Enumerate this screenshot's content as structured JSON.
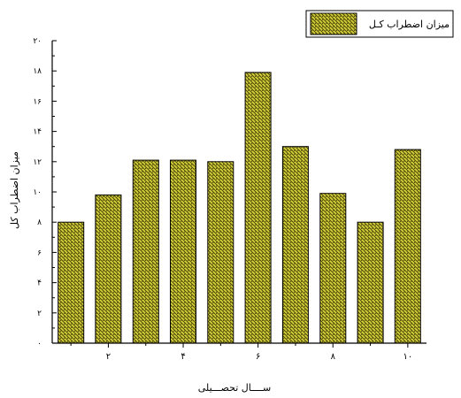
{
  "chart_data": {
    "type": "bar",
    "x": [
      1,
      2,
      3,
      4,
      5,
      6,
      7,
      8,
      9,
      10
    ],
    "xticks": [
      2,
      4,
      6,
      8,
      10
    ],
    "xtick_labels": [
      "۲",
      "۴",
      "۶",
      "۸",
      "۱۰"
    ],
    "values": [
      8.0,
      9.8,
      12.1,
      12.1,
      12.0,
      17.9,
      13.0,
      9.9,
      8.0,
      12.8
    ],
    "ylim": [
      0,
      20
    ],
    "yticks": [
      0,
      2,
      4,
      6,
      8,
      10,
      12,
      14,
      16,
      18,
      20
    ],
    "ytick_labels": [
      "۰",
      "۲",
      "۴",
      "۶",
      "۸",
      "۱۰",
      "۱۲",
      "۱۴",
      "۱۶",
      "۱۸",
      "۲۰"
    ],
    "xlim": [
      0.5,
      10.5
    ],
    "xlabel": "ســــال تحصـــیلی",
    "ylabel": "میزان اضطراب کل",
    "legend": {
      "label": "میزان اضطراب کـل",
      "position": "top-right"
    },
    "colors": {
      "bar_fill": "#d6cf3c",
      "bar_hatch": "#3a3600",
      "axis": "#000000"
    },
    "grid": false
  }
}
